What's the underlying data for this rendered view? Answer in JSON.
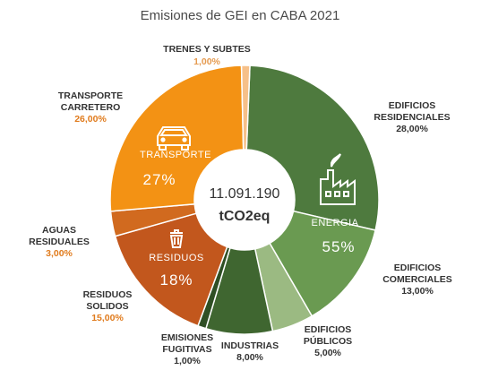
{
  "chart_data": {
    "type": "pie",
    "title": "Emisiones de GEI en CABA 2021",
    "center": {
      "total": "11.091.190",
      "unit": "tCO2eq"
    },
    "slices": [
      {
        "name": "EDIFICIOS RESIDENCIALES",
        "value": 28.0,
        "label": "28,00%",
        "color": "#4e7a3e",
        "value_color": "#333333"
      },
      {
        "name": "EDIFICIOS COMERCIALES",
        "value": 13.0,
        "label": "13,00%",
        "color": "#6a9a51",
        "value_color": "#333333"
      },
      {
        "name": "EDIFICIOS PÚBLICOS",
        "value": 5.0,
        "label": "5,00%",
        "color": "#9bba82",
        "value_color": "#333333"
      },
      {
        "name": "INDUSTRIAS",
        "value": 8.0,
        "label": "8,00%",
        "color": "#3f6630",
        "value_color": "#333333"
      },
      {
        "name": "EMISIONES FUGITIVAS",
        "value": 1.0,
        "label": "1,00%",
        "color": "#2f4f24",
        "value_color": "#333333"
      },
      {
        "name": "RESIDUOS SOLIDOS",
        "value": 15.0,
        "label": "15,00%",
        "color": "#c2571d",
        "value_color": "#e07b1d"
      },
      {
        "name": "AGUAS RESIDUALES",
        "value": 3.0,
        "label": "3,00%",
        "color": "#d16a1f",
        "value_color": "#e07b1d"
      },
      {
        "name": "TRANSPORTE CARRETERO",
        "value": 26.0,
        "label": "26,00%",
        "color": "#f39214",
        "value_color": "#e07b1d"
      },
      {
        "name": "TRENES Y SUBTES",
        "value": 1.0,
        "label": "1,00%",
        "color": "#f6c089",
        "value_color": "#e59a4f"
      }
    ],
    "groups": [
      {
        "name": "ENERGIA",
        "value": "55%"
      },
      {
        "name": "RESIDUOS",
        "value": "18%"
      },
      {
        "name": "TRANSPORTE",
        "value": "27%"
      }
    ],
    "icons": [
      "factory-icon",
      "trash-can-icon",
      "car-icon"
    ]
  }
}
